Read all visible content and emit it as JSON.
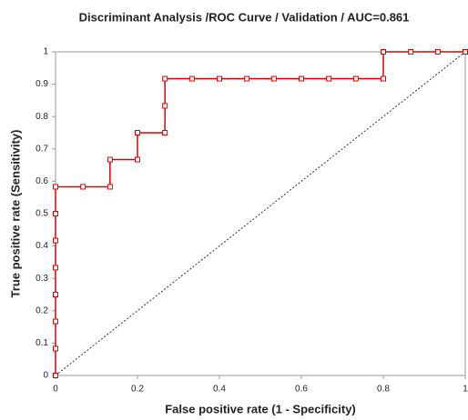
{
  "chart_data": {
    "type": "line",
    "title": "Discriminant Analysis /ROC Curve / Validation / AUC=0.861",
    "x_label": "False positive rate (1 - Specificity)",
    "y_label": "True positive rate (Sensitivity)",
    "series": [
      {
        "color": "#e00000",
        "x": [
          0,
          0,
          0,
          0,
          0,
          0,
          0,
          0,
          0.067,
          0.133,
          0.133,
          0.2,
          0.2,
          0.267,
          0.267,
          0.267,
          0.333,
          0.4,
          0.467,
          0.533,
          0.6,
          0.667,
          0.733,
          0.8,
          0.8,
          0.867,
          0.933,
          1
        ],
        "values": [
          0,
          0.083,
          0.167,
          0.25,
          0.333,
          0.417,
          0.5,
          0.583,
          0.583,
          0.583,
          0.667,
          0.667,
          0.75,
          0.75,
          0.833,
          0.917,
          0.917,
          0.917,
          0.917,
          0.917,
          0.917,
          0.917,
          0.917,
          0.917,
          1,
          1,
          1,
          1
        ]
      }
    ],
    "reference_line": true,
    "xlim": [
      0,
      1
    ],
    "ylim": [
      0,
      1
    ],
    "xticks": [
      0,
      0.2,
      0.4,
      0.6,
      0.8,
      1
    ],
    "yticks": [
      0,
      0.1,
      0.2,
      0.3,
      0.4,
      0.5,
      0.6,
      0.7,
      0.8,
      0.9,
      1
    ],
    "grid": false
  }
}
